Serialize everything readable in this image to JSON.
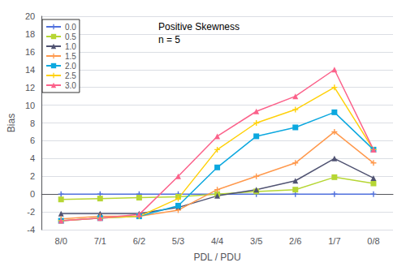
{
  "chart_data": {
    "type": "line",
    "title": "Positive Skewness",
    "subtitle": "n = 5",
    "x_label": "PDL / PDU",
    "y_label": "Bias",
    "categories": [
      "8/0",
      "7/1",
      "6/2",
      "5/3",
      "4/4",
      "3/5",
      "2/6",
      "1/7",
      "0/8"
    ],
    "series": [
      {
        "name": "0.0",
        "marker": "plus",
        "values": [
          0.0,
          0.0,
          0.0,
          0.0,
          0.0,
          0.0,
          0.0,
          0.0,
          0.0
        ]
      },
      {
        "name": "0.5",
        "marker": "square",
        "values": [
          -0.6,
          -0.5,
          -0.4,
          -0.3,
          0.0,
          0.3,
          0.5,
          1.9,
          1.2
        ]
      },
      {
        "name": "1.0",
        "marker": "triangle",
        "values": [
          -2.2,
          -2.2,
          -2.2,
          -1.5,
          -0.2,
          0.5,
          1.5,
          4.0,
          1.8
        ]
      },
      {
        "name": "1.5",
        "marker": "plus",
        "values": [
          -2.8,
          -2.5,
          -2.5,
          -1.8,
          0.5,
          2.0,
          3.5,
          7.0,
          3.5
        ]
      },
      {
        "name": "2.0",
        "marker": "square",
        "values": [
          -3.0,
          -2.7,
          -2.5,
          -1.3,
          3.0,
          6.5,
          7.5,
          9.2,
          5.0
        ]
      },
      {
        "name": "2.5",
        "marker": "plus",
        "values": [
          -3.0,
          -2.7,
          -2.5,
          -0.5,
          5.0,
          8.0,
          9.5,
          12.0,
          5.0
        ]
      },
      {
        "name": "3.0",
        "marker": "triangle",
        "values": [
          -3.0,
          -2.7,
          -2.3,
          2.0,
          6.5,
          9.3,
          11.0,
          14.0,
          5.0
        ]
      }
    ],
    "ylim": [
      -4,
      20
    ],
    "yticks": [
      -4,
      -2,
      0,
      2,
      4,
      6,
      8,
      10,
      12,
      14,
      16,
      18,
      20
    ],
    "grid": true,
    "legend": "upper left"
  }
}
